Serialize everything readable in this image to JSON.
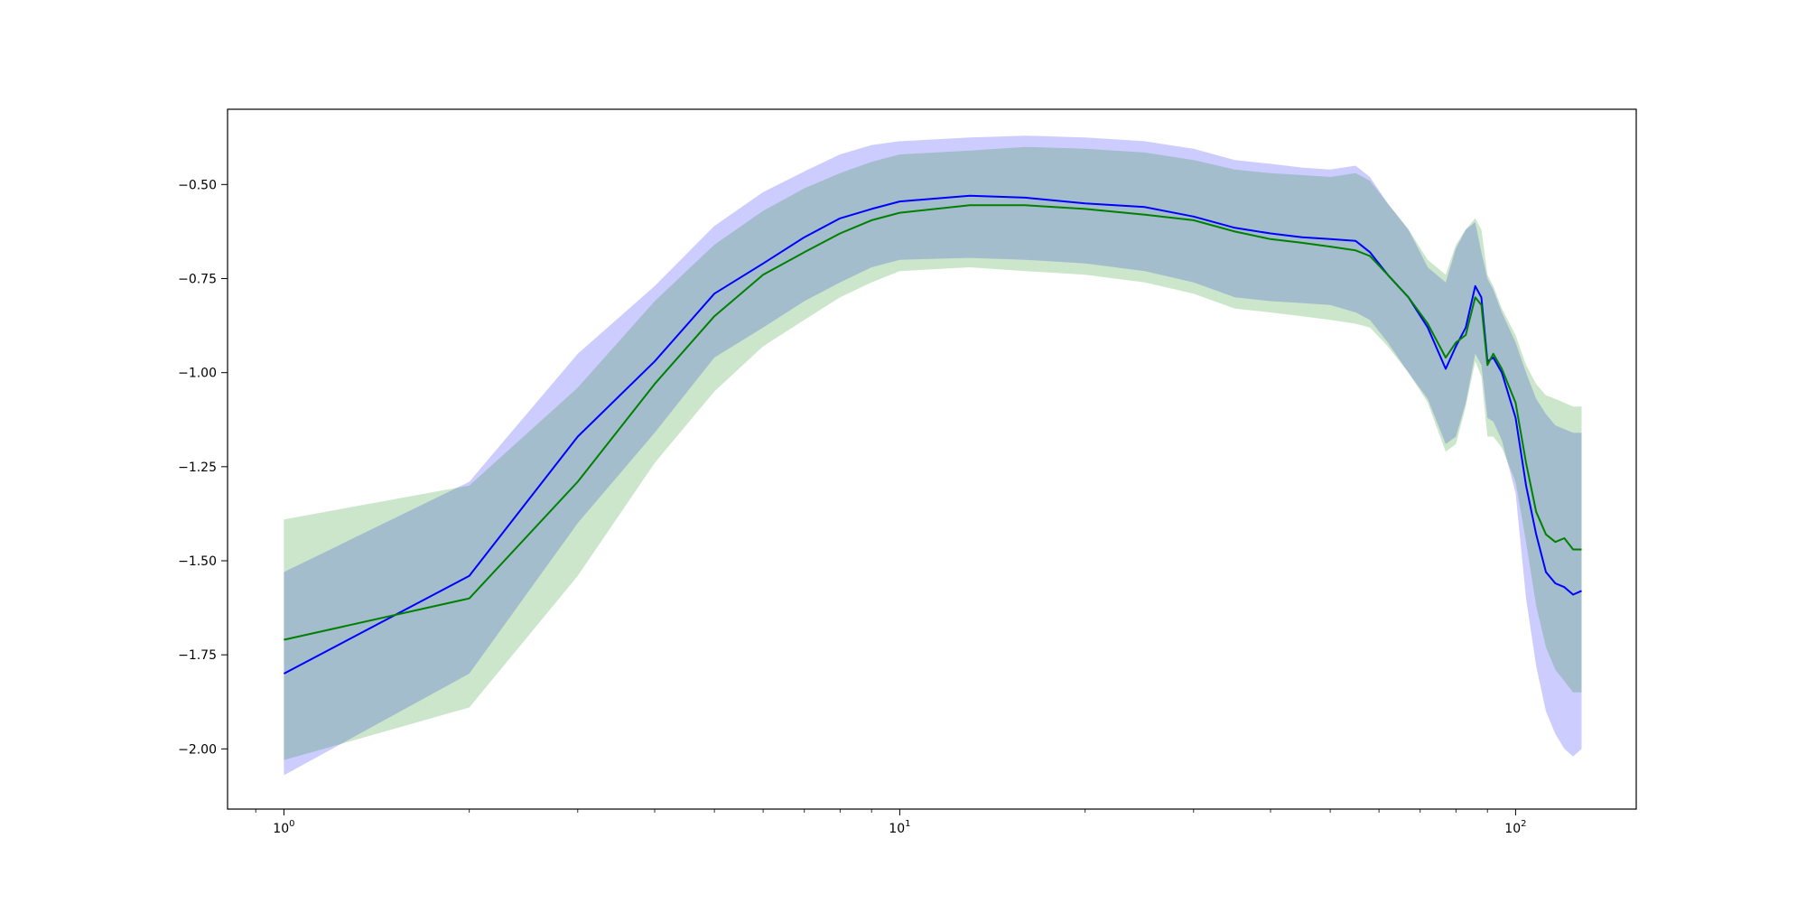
{
  "chart_data": {
    "type": "line",
    "title": "",
    "xlabel": "",
    "ylabel": "",
    "xscale": "log",
    "xlim": [
      0.81,
      157
    ],
    "ylim": [
      -2.16,
      -0.3
    ],
    "grid": false,
    "legend": "none",
    "x_ticks": [
      {
        "value": 1,
        "base": "10",
        "exp": "0"
      },
      {
        "value": 10,
        "base": "10",
        "exp": "1"
      },
      {
        "value": 100,
        "base": "10",
        "exp": "2"
      }
    ],
    "y_ticks": [
      {
        "value": -0.5,
        "label": "−0.50"
      },
      {
        "value": -0.75,
        "label": "−0.75"
      },
      {
        "value": -1.0,
        "label": "−1.00"
      },
      {
        "value": -1.25,
        "label": "−1.25"
      },
      {
        "value": -1.5,
        "label": "−1.50"
      },
      {
        "value": -1.75,
        "label": "−1.75"
      },
      {
        "value": -2.0,
        "label": "−2.00"
      }
    ],
    "series": [
      {
        "color": "#0000ff",
        "band_color": "#0000ff",
        "band_opacity": 0.2,
        "x": [
          1,
          2,
          3,
          4,
          5,
          6,
          7,
          8,
          9,
          10,
          13,
          16,
          20,
          25,
          30,
          35,
          40,
          45,
          50,
          55,
          58,
          62,
          67,
          72,
          77,
          80,
          83,
          86,
          88,
          90,
          92,
          95,
          100,
          104,
          108,
          112,
          116,
          120,
          124,
          128
        ],
        "y": [
          -1.8,
          -1.54,
          -1.17,
          -0.97,
          -0.79,
          -0.71,
          -0.64,
          -0.59,
          -0.565,
          -0.545,
          -0.53,
          -0.535,
          -0.55,
          -0.56,
          -0.585,
          -0.615,
          -0.63,
          -0.64,
          -0.645,
          -0.65,
          -0.68,
          -0.74,
          -0.8,
          -0.88,
          -0.99,
          -0.93,
          -0.88,
          -0.77,
          -0.8,
          -0.97,
          -0.96,
          -1.0,
          -1.12,
          -1.3,
          -1.43,
          -1.53,
          -1.56,
          -1.57,
          -1.59,
          -1.58
        ],
        "upper": [
          -1.53,
          -1.29,
          -0.95,
          -0.77,
          -0.61,
          -0.52,
          -0.465,
          -0.42,
          -0.395,
          -0.385,
          -0.375,
          -0.37,
          -0.375,
          -0.385,
          -0.405,
          -0.435,
          -0.445,
          -0.455,
          -0.46,
          -0.45,
          -0.48,
          -0.55,
          -0.62,
          -0.72,
          -0.76,
          -0.67,
          -0.62,
          -0.6,
          -0.68,
          -0.75,
          -0.78,
          -0.84,
          -0.92,
          -1.0,
          -1.07,
          -1.11,
          -1.14,
          -1.15,
          -1.16,
          -1.16
        ],
        "lower": [
          -2.07,
          -1.8,
          -1.4,
          -1.16,
          -0.96,
          -0.88,
          -0.81,
          -0.76,
          -0.72,
          -0.7,
          -0.695,
          -0.7,
          -0.71,
          -0.73,
          -0.76,
          -0.8,
          -0.81,
          -0.815,
          -0.82,
          -0.84,
          -0.86,
          -0.92,
          -1.0,
          -1.07,
          -1.19,
          -1.17,
          -1.08,
          -0.95,
          -0.98,
          -1.12,
          -1.13,
          -1.18,
          -1.32,
          -1.6,
          -1.78,
          -1.9,
          -1.96,
          -2.0,
          -2.02,
          -2.0
        ]
      },
      {
        "color": "#008000",
        "band_color": "#008000",
        "band_opacity": 0.2,
        "x": [
          1,
          2,
          3,
          4,
          5,
          6,
          7,
          8,
          9,
          10,
          13,
          16,
          20,
          25,
          30,
          35,
          40,
          45,
          50,
          55,
          58,
          62,
          67,
          72,
          77,
          80,
          83,
          86,
          88,
          90,
          92,
          95,
          100,
          104,
          108,
          112,
          116,
          120,
          124,
          128
        ],
        "y": [
          -1.71,
          -1.6,
          -1.29,
          -1.03,
          -0.85,
          -0.74,
          -0.68,
          -0.63,
          -0.595,
          -0.575,
          -0.555,
          -0.555,
          -0.565,
          -0.58,
          -0.595,
          -0.625,
          -0.645,
          -0.655,
          -0.665,
          -0.675,
          -0.69,
          -0.74,
          -0.8,
          -0.87,
          -0.96,
          -0.92,
          -0.9,
          -0.8,
          -0.82,
          -0.98,
          -0.95,
          -0.99,
          -1.08,
          -1.24,
          -1.37,
          -1.43,
          -1.45,
          -1.44,
          -1.47,
          -1.47
        ],
        "upper": [
          -1.39,
          -1.3,
          -1.04,
          -0.81,
          -0.66,
          -0.57,
          -0.51,
          -0.47,
          -0.44,
          -0.42,
          -0.41,
          -0.4,
          -0.405,
          -0.415,
          -0.435,
          -0.46,
          -0.47,
          -0.475,
          -0.48,
          -0.47,
          -0.49,
          -0.55,
          -0.62,
          -0.7,
          -0.74,
          -0.66,
          -0.62,
          -0.59,
          -0.62,
          -0.74,
          -0.77,
          -0.83,
          -0.9,
          -0.98,
          -1.03,
          -1.06,
          -1.07,
          -1.08,
          -1.09,
          -1.09
        ],
        "lower": [
          -2.03,
          -1.89,
          -1.54,
          -1.24,
          -1.05,
          -0.93,
          -0.86,
          -0.8,
          -0.76,
          -0.73,
          -0.72,
          -0.73,
          -0.74,
          -0.76,
          -0.79,
          -0.83,
          -0.84,
          -0.85,
          -0.86,
          -0.87,
          -0.88,
          -0.93,
          -1.0,
          -1.08,
          -1.21,
          -1.19,
          -1.09,
          -0.97,
          -1.01,
          -1.17,
          -1.17,
          -1.2,
          -1.29,
          -1.45,
          -1.62,
          -1.73,
          -1.79,
          -1.82,
          -1.85,
          -1.85
        ]
      }
    ]
  }
}
